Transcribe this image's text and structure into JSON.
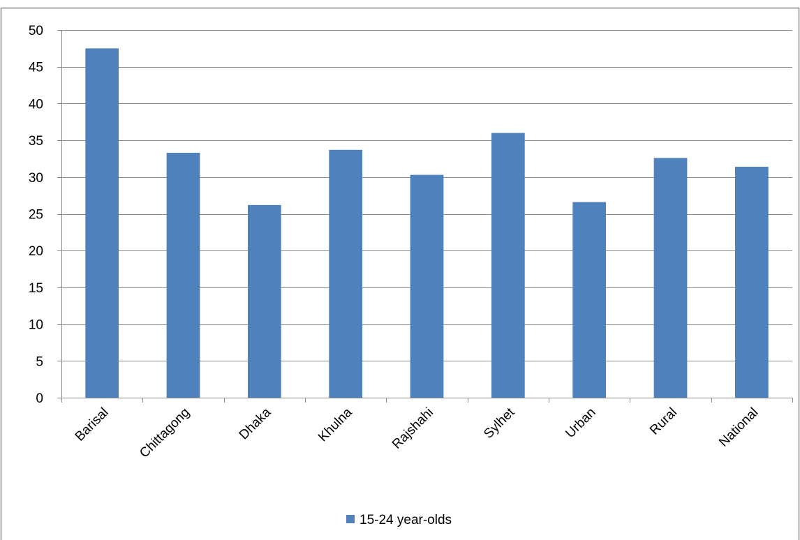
{
  "chart_data": {
    "type": "bar",
    "title": "",
    "xlabel": "",
    "ylabel": "",
    "categories": [
      "Barisal",
      "Chittagong",
      "Dhaka",
      "Khulna",
      "Rajshahi",
      "Sylhet",
      "Urban",
      "Rural",
      "National"
    ],
    "series": [
      {
        "name": "15-24 year-olds",
        "color": "#4F81BD",
        "values": [
          47.5,
          33.3,
          26.2,
          33.7,
          30.3,
          36.0,
          26.6,
          32.6,
          31.4
        ]
      }
    ],
    "ylim": [
      0,
      50
    ],
    "yticks": [
      0,
      5,
      10,
      15,
      20,
      25,
      30,
      35,
      40,
      45,
      50
    ],
    "grid": true,
    "legend_position": "bottom",
    "x_tick_rotation": "diagonal"
  }
}
